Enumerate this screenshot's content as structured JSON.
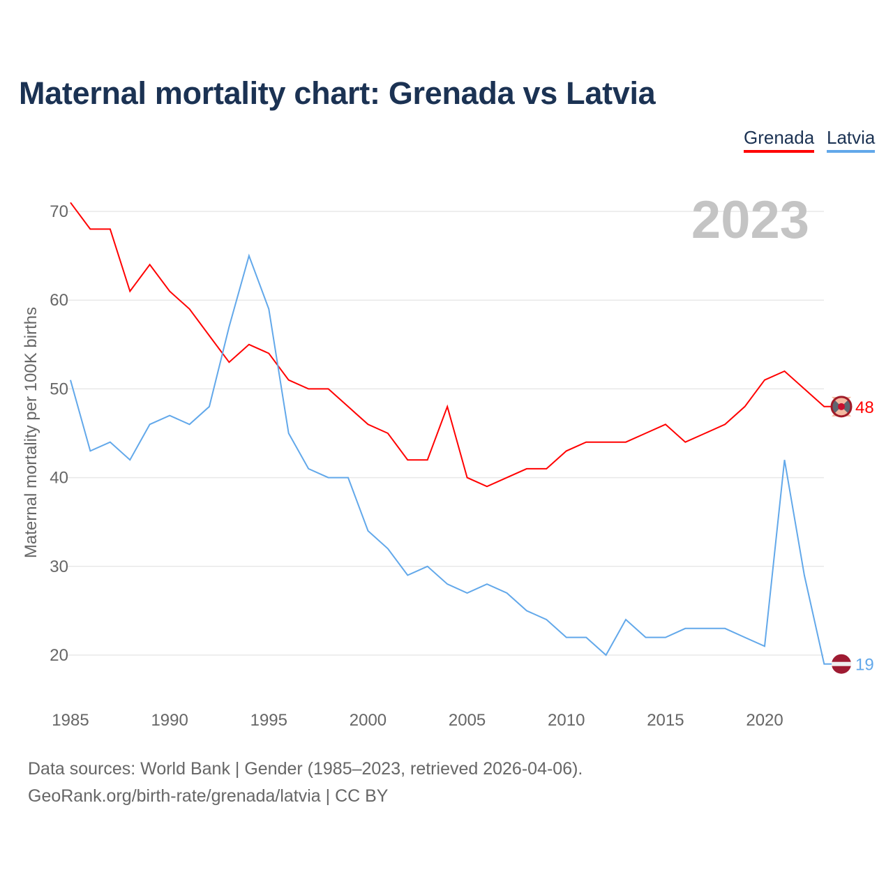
{
  "chart_data": {
    "type": "line",
    "title": "Maternal mortality chart: Grenada vs Latvia",
    "ylabel": "Maternal mortality per 100K births",
    "xlabel": "",
    "year_label": "2023",
    "xlim": [
      1985,
      2023
    ],
    "ylim": [
      15,
      72
    ],
    "xticks": [
      1985,
      1990,
      1995,
      2000,
      2005,
      2010,
      2015,
      2020
    ],
    "yticks": [
      20,
      30,
      40,
      50,
      60,
      70
    ],
    "grid": true,
    "legend": "top-right",
    "x": [
      1985,
      1986,
      1987,
      1988,
      1989,
      1990,
      1991,
      1992,
      1993,
      1994,
      1995,
      1996,
      1997,
      1998,
      1999,
      2000,
      2001,
      2002,
      2003,
      2004,
      2005,
      2006,
      2007,
      2008,
      2009,
      2010,
      2011,
      2012,
      2013,
      2014,
      2015,
      2016,
      2017,
      2018,
      2019,
      2020,
      2021,
      2022,
      2023
    ],
    "series": [
      {
        "name": "Grenada",
        "color": "#ff0000",
        "end_label": "48",
        "values": [
          71,
          68,
          68,
          61,
          64,
          61,
          59,
          56,
          53,
          55,
          54,
          51,
          50,
          50,
          48,
          46,
          45,
          42,
          42,
          48,
          40,
          39,
          40,
          41,
          41,
          43,
          44,
          44,
          44,
          45,
          46,
          44,
          45,
          46,
          48,
          51,
          52,
          50,
          48
        ]
      },
      {
        "name": "Latvia",
        "color": "#62a8ea",
        "end_label": "19",
        "values": [
          51,
          43,
          44,
          42,
          46,
          47,
          46,
          48,
          57,
          65,
          59,
          45,
          41,
          40,
          40,
          34,
          32,
          29,
          30,
          28,
          27,
          28,
          27,
          25,
          24,
          22,
          22,
          20,
          24,
          22,
          22,
          23,
          23,
          23,
          22,
          21,
          42,
          29,
          19
        ]
      }
    ]
  },
  "footer": {
    "line1": "Data sources: World Bank | Gender (1985–2023, retrieved 2026-04-06).",
    "line2": "GeoRank.org/birth-rate/grenada/latvia | CC BY"
  }
}
